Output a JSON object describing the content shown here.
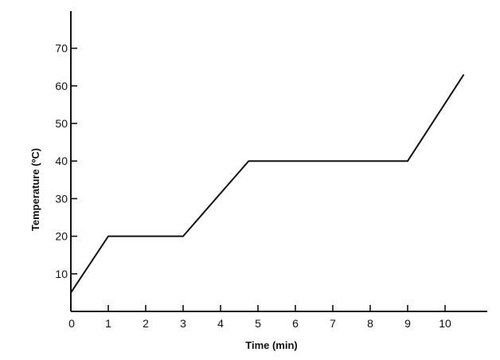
{
  "chart_data": {
    "type": "line",
    "title": "",
    "xlabel": "Time (min)",
    "ylabel": "Temperature (ºC)",
    "xlim": [
      0,
      11
    ],
    "ylim": [
      0,
      80
    ],
    "x_ticks": [
      0,
      1,
      2,
      3,
      4,
      5,
      6,
      7,
      8,
      9,
      10
    ],
    "x_tick_labels": [
      "0",
      "1",
      "2",
      "3",
      "4",
      "5",
      "6",
      "7",
      "8",
      "9",
      "10"
    ],
    "y_ticks": [
      10,
      20,
      30,
      40,
      50,
      60,
      70
    ],
    "y_tick_labels": [
      "10",
      "20",
      "30",
      "40",
      "50",
      "60",
      "70"
    ],
    "grid": false,
    "legend": "none",
    "series": [
      {
        "x": [
          0,
          1,
          3,
          4.75,
          9,
          10.5
        ],
        "y": [
          5,
          20,
          20,
          40,
          40,
          63
        ]
      }
    ],
    "colors": {
      "line": "#111111",
      "axis": "#111111"
    }
  }
}
